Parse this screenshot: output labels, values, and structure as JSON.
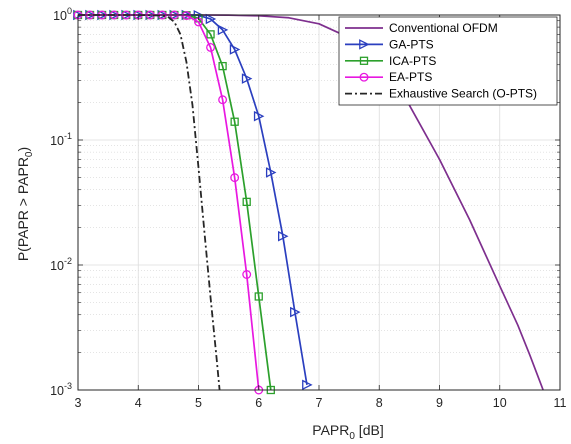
{
  "chart_data": {
    "type": "line",
    "xlabel": {
      "base": "PAPR",
      "sub": "0",
      "suffix": " [dB]"
    },
    "ylabel": {
      "prefix": "P(PAPR > PAPR",
      "sub": "0",
      "suffix": ")"
    },
    "xlim": [
      3,
      11
    ],
    "ylim": [
      0.001,
      1
    ],
    "yscale": "log",
    "grid": true,
    "legend_position": "top-right",
    "x_ticks": [
      3,
      4,
      5,
      6,
      7,
      8,
      9,
      10,
      11
    ],
    "y_ticks": [
      {
        "value": 1,
        "base": "10",
        "exp": "0"
      },
      {
        "value": 0.1,
        "base": "10",
        "exp": "-1"
      },
      {
        "value": 0.01,
        "base": "10",
        "exp": "-2"
      },
      {
        "value": 0.001,
        "base": "10",
        "exp": "-3"
      }
    ],
    "series": [
      {
        "name": "Conventional OFDM",
        "color": "#7e2f8e",
        "marker": "none",
        "dash": "solid",
        "x": [
          3,
          4,
          5,
          5.5,
          6,
          6.5,
          7,
          7.5,
          8,
          8.5,
          9,
          9.5,
          10,
          10.3,
          10.5,
          10.72
        ],
        "y": [
          1,
          1,
          1,
          0.997,
          0.985,
          0.95,
          0.85,
          0.66,
          0.4,
          0.19,
          0.07,
          0.023,
          0.0068,
          0.0033,
          0.0019,
          0.001
        ]
      },
      {
        "name": "GA-PTS",
        "color": "#2b3fbf",
        "marker": "triangle-right",
        "dash": "solid",
        "x": [
          3,
          3.2,
          3.4,
          3.6,
          3.8,
          4,
          4.2,
          4.4,
          4.6,
          4.8,
          5,
          5.2,
          5.4,
          5.6,
          5.8,
          6,
          6.2,
          6.4,
          6.6,
          6.8
        ],
        "y": [
          1,
          1,
          1,
          1,
          1,
          1,
          1,
          1,
          1,
          1,
          0.995,
          0.93,
          0.76,
          0.53,
          0.31,
          0.155,
          0.055,
          0.017,
          0.0042,
          0.0011
        ]
      },
      {
        "name": "ICA-PTS",
        "color": "#2ca02c",
        "marker": "square",
        "dash": "solid",
        "x": [
          3,
          3.2,
          3.4,
          3.6,
          3.8,
          4,
          4.2,
          4.4,
          4.6,
          4.8,
          5,
          5.2,
          5.4,
          5.6,
          5.8,
          6,
          6.2
        ],
        "y": [
          1,
          1,
          1,
          1,
          1,
          1,
          1,
          1,
          1,
          0.995,
          0.94,
          0.7,
          0.39,
          0.14,
          0.032,
          0.0056,
          0.001
        ]
      },
      {
        "name": "EA-PTS",
        "color": "#e818e0",
        "marker": "circle",
        "dash": "solid",
        "x": [
          3,
          3.2,
          3.4,
          3.6,
          3.8,
          4,
          4.2,
          4.4,
          4.6,
          4.8,
          5,
          5.2,
          5.4,
          5.6,
          5.8,
          6
        ],
        "y": [
          1,
          1,
          1,
          1,
          1,
          1,
          1,
          1,
          1,
          0.99,
          0.88,
          0.55,
          0.21,
          0.05,
          0.0084,
          0.001
        ]
      },
      {
        "name": "Exhaustive Search (O-PTS)",
        "color": "#262626",
        "marker": "none",
        "dash": "dashdot",
        "x": [
          3,
          4,
          4.4,
          4.5,
          4.6,
          4.7,
          4.8,
          4.9,
          5,
          5.1,
          5.2,
          5.3,
          5.35
        ],
        "y": [
          1,
          1,
          0.99,
          0.96,
          0.88,
          0.7,
          0.42,
          0.19,
          0.06,
          0.018,
          0.0055,
          0.0018,
          0.001
        ]
      }
    ]
  }
}
